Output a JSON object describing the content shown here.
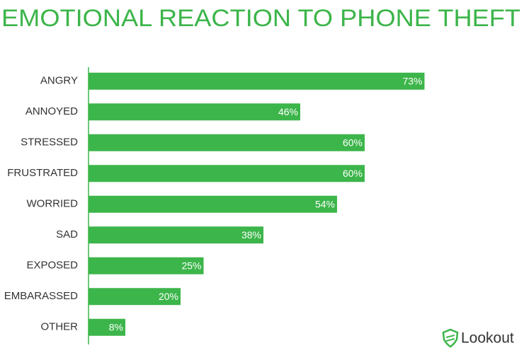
{
  "chart_data": {
    "type": "hbar",
    "title": "EMOTIONAL REACTION TO PHONE THEFT",
    "categories": [
      "ANGRY",
      "ANNOYED",
      "STRESSED",
      "FRUSTRATED",
      "WORRIED",
      "SAD",
      "EXPOSED",
      "EMBARASSED",
      "OTHER"
    ],
    "values": [
      73,
      46,
      60,
      60,
      54,
      38,
      25,
      20,
      8
    ],
    "value_labels": [
      "73%",
      "46%",
      "60%",
      "60%",
      "54%",
      "38%",
      "25%",
      "20%",
      "8%"
    ],
    "color": "#3cb54a"
  },
  "logo": "Lookout"
}
